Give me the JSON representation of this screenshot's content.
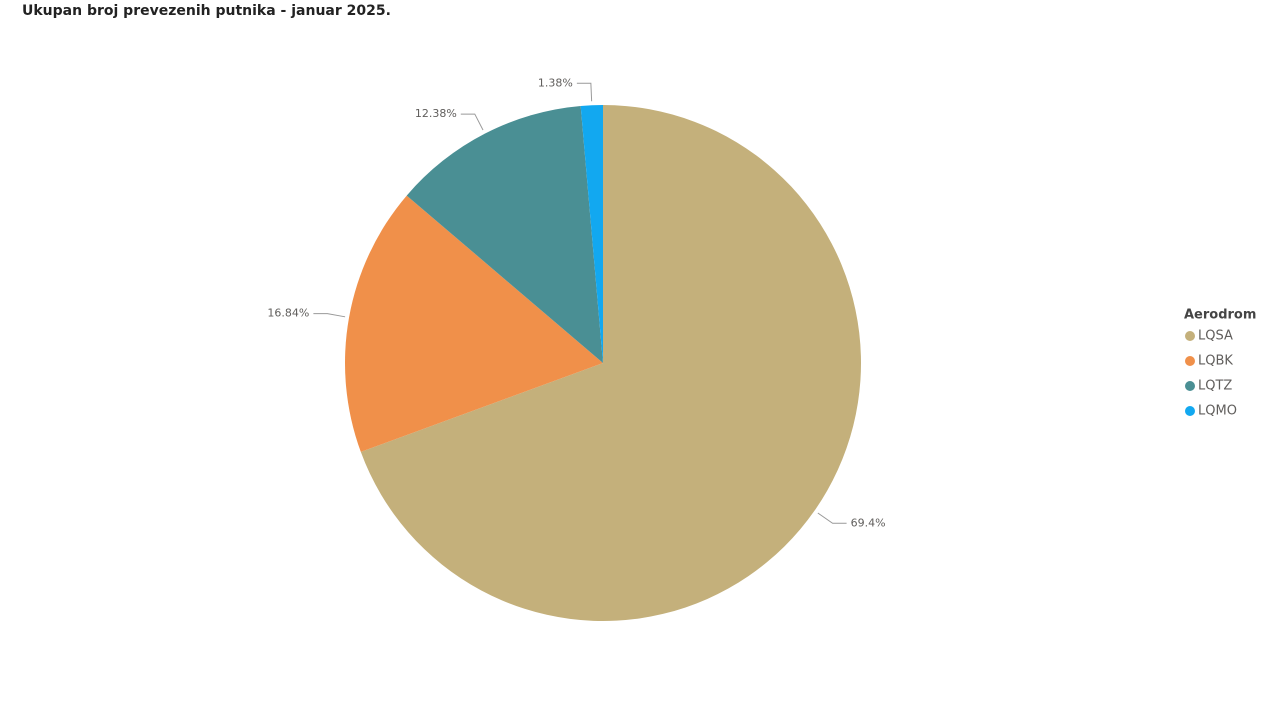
{
  "chart_data": {
    "type": "pie",
    "title": "Ukupan broj prevezenih putnika - januar 2025.",
    "legend_title": "Aerodrom",
    "categories": [
      "LQSA",
      "LQBK",
      "LQTZ",
      "LQMO"
    ],
    "values": [
      69.4,
      16.84,
      12.38,
      1.38
    ],
    "value_labels": [
      "69.4%",
      "16.84%",
      "12.38%",
      "1.38%"
    ],
    "colors": [
      "#c4b07b",
      "#f0904a",
      "#4a8f94",
      "#12a8f0"
    ]
  }
}
